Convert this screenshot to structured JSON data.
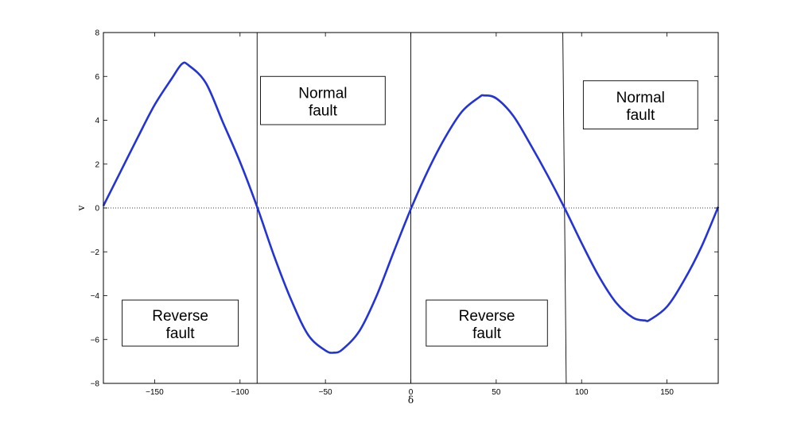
{
  "chart_data": {
    "type": "line",
    "title": "",
    "xlabel": "δ",
    "ylabel": "v",
    "xlim": [
      -180,
      180
    ],
    "ylim": [
      -8,
      8
    ],
    "xticks": [
      -150,
      -100,
      -50,
      0,
      50,
      100,
      150
    ],
    "yticks": [
      -8,
      -6,
      -4,
      -2,
      0,
      2,
      4,
      6,
      8
    ],
    "xtick_labels": [
      "−150",
      "−100",
      "−50",
      "0",
      "50",
      "100",
      "150"
    ],
    "ytick_labels": [
      "−8",
      "−6",
      "−4",
      "−2",
      "0",
      "2",
      "4",
      "6",
      "8"
    ],
    "grid": false,
    "zero_line": {
      "y": 0,
      "style": "dotted"
    },
    "series": [
      {
        "color": "#2233dd",
        "x": [
          -180,
          -170,
          -160,
          -150,
          -140,
          -134,
          -130,
          -120,
          -110,
          -100,
          -90,
          -80,
          -70,
          -60,
          -50,
          -45,
          -40,
          -30,
          -20,
          -10,
          0,
          10,
          20,
          30,
          40,
          43,
          50,
          60,
          70,
          80,
          90,
          100,
          110,
          120,
          130,
          137,
          140,
          150,
          160,
          170,
          180
        ],
        "y": [
          0.1,
          1.65,
          3.2,
          4.7,
          5.9,
          6.57,
          6.5,
          5.7,
          3.9,
          2.1,
          0.05,
          -2.2,
          -4.2,
          -5.8,
          -6.5,
          -6.6,
          -6.45,
          -5.6,
          -4.0,
          -2.0,
          -0.05,
          1.7,
          3.2,
          4.4,
          5.05,
          5.13,
          5.0,
          4.2,
          2.9,
          1.5,
          0.0,
          -1.6,
          -3.1,
          -4.3,
          -5.0,
          -5.13,
          -5.1,
          -4.5,
          -3.3,
          -1.8,
          0.05
        ]
      }
    ],
    "vertical_lines": [
      {
        "x1": -90,
        "x2": -90
      },
      {
        "x1": 0,
        "x2": 0
      },
      {
        "x1": 89,
        "x2": 91
      }
    ],
    "annotations": [
      {
        "line1": "Normal",
        "line2": "fault",
        "x0": -88,
        "x1": -15,
        "y_top": 6.0,
        "y_bottom": 3.8
      },
      {
        "line1": "Normal",
        "line2": "fault",
        "x0": 101,
        "x1": 168,
        "y_top": 5.8,
        "y_bottom": 3.6
      },
      {
        "line1": "Reverse",
        "line2": "fault",
        "x0": -169,
        "x1": -101,
        "y_top": -4.2,
        "y_bottom": -6.3
      },
      {
        "line1": "Reverse",
        "line2": "fault",
        "x0": 9,
        "x1": 80,
        "y_top": -4.2,
        "y_bottom": -6.3
      }
    ]
  }
}
